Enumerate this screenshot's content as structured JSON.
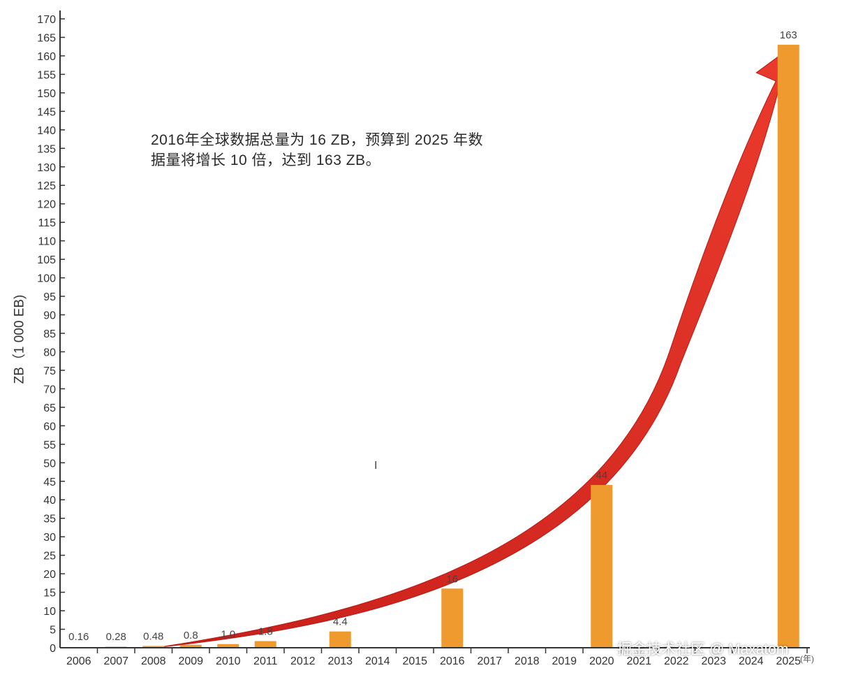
{
  "chart_data": {
    "type": "bar",
    "title": "",
    "xlabel": "(年)",
    "ylabel": "ZB（1 000 EB)",
    "ylim": [
      0,
      170
    ],
    "ytick_step": 5,
    "categories": [
      "2006",
      "2007",
      "2008",
      "2009",
      "2010",
      "2011",
      "2012",
      "2013",
      "2014",
      "2015",
      "2016",
      "2017",
      "2018",
      "2019",
      "2020",
      "2021",
      "2022",
      "2023",
      "2024",
      "2025"
    ],
    "values": [
      0.16,
      0.28,
      0.48,
      0.8,
      1.0,
      1.8,
      null,
      4.4,
      null,
      null,
      16,
      null,
      null,
      null,
      44,
      null,
      null,
      null,
      null,
      163
    ],
    "data_labels": [
      "0.16",
      "0.28",
      "0.48",
      "0.8",
      "1.0",
      "1.8",
      "",
      "4.4",
      "",
      "",
      "16",
      "",
      "",
      "",
      "44",
      "",
      "",
      "",
      "",
      "163"
    ],
    "bar_color": "#ef9a2e",
    "arrow_color": "#e2302a",
    "grid": false,
    "annotation": {
      "line1": "2016年全球数据总量为 16 ZB，预算到 2025 年数",
      "line2": "据量将增长 10 倍，达到 163 ZB。"
    }
  },
  "watermark": "掘金技术社区 @ Maxatom",
  "cursor_glyph": "I"
}
